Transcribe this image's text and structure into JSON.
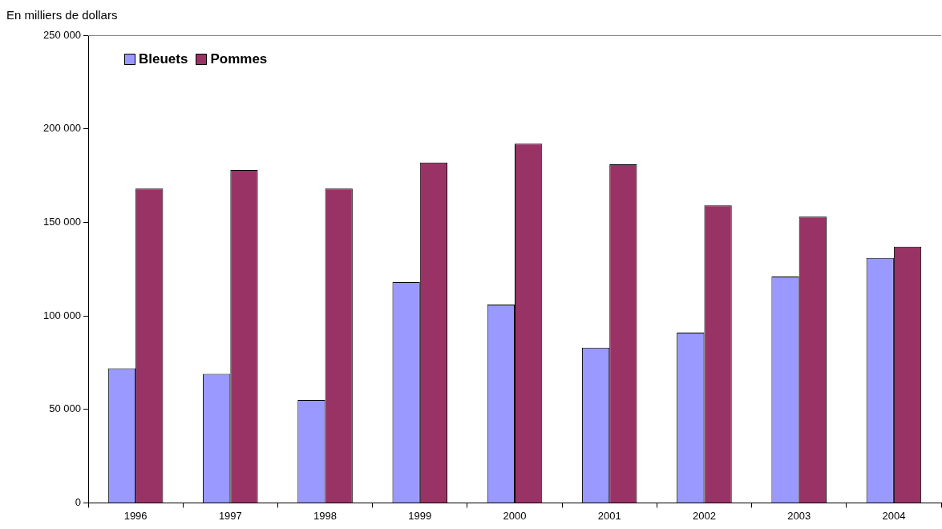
{
  "chart_data": {
    "type": "bar",
    "ylabel": "En milliers de dollars",
    "categories": [
      "1996",
      "1997",
      "1998",
      "1999",
      "2000",
      "2001",
      "2002",
      "2003",
      "2004"
    ],
    "series": [
      {
        "name": "Bleuets",
        "color": "#9999ff",
        "values": [
          72000,
          69000,
          55000,
          118000,
          106000,
          83000,
          91000,
          121000,
          131000
        ]
      },
      {
        "name": "Pommes",
        "color": "#993366",
        "values": [
          168000,
          178000,
          168000,
          182000,
          192000,
          181000,
          159000,
          153000,
          137000
        ]
      }
    ],
    "ylim": [
      0,
      250000
    ],
    "yticks": [
      {
        "value": 0,
        "label": "0"
      },
      {
        "value": 50000,
        "label": "50 000"
      },
      {
        "value": 100000,
        "label": "100 000"
      },
      {
        "value": 150000,
        "label": "150 000"
      },
      {
        "value": 200000,
        "label": "200 000"
      },
      {
        "value": 250000,
        "label": "250 000"
      }
    ],
    "grid": false,
    "legend": "top left"
  }
}
